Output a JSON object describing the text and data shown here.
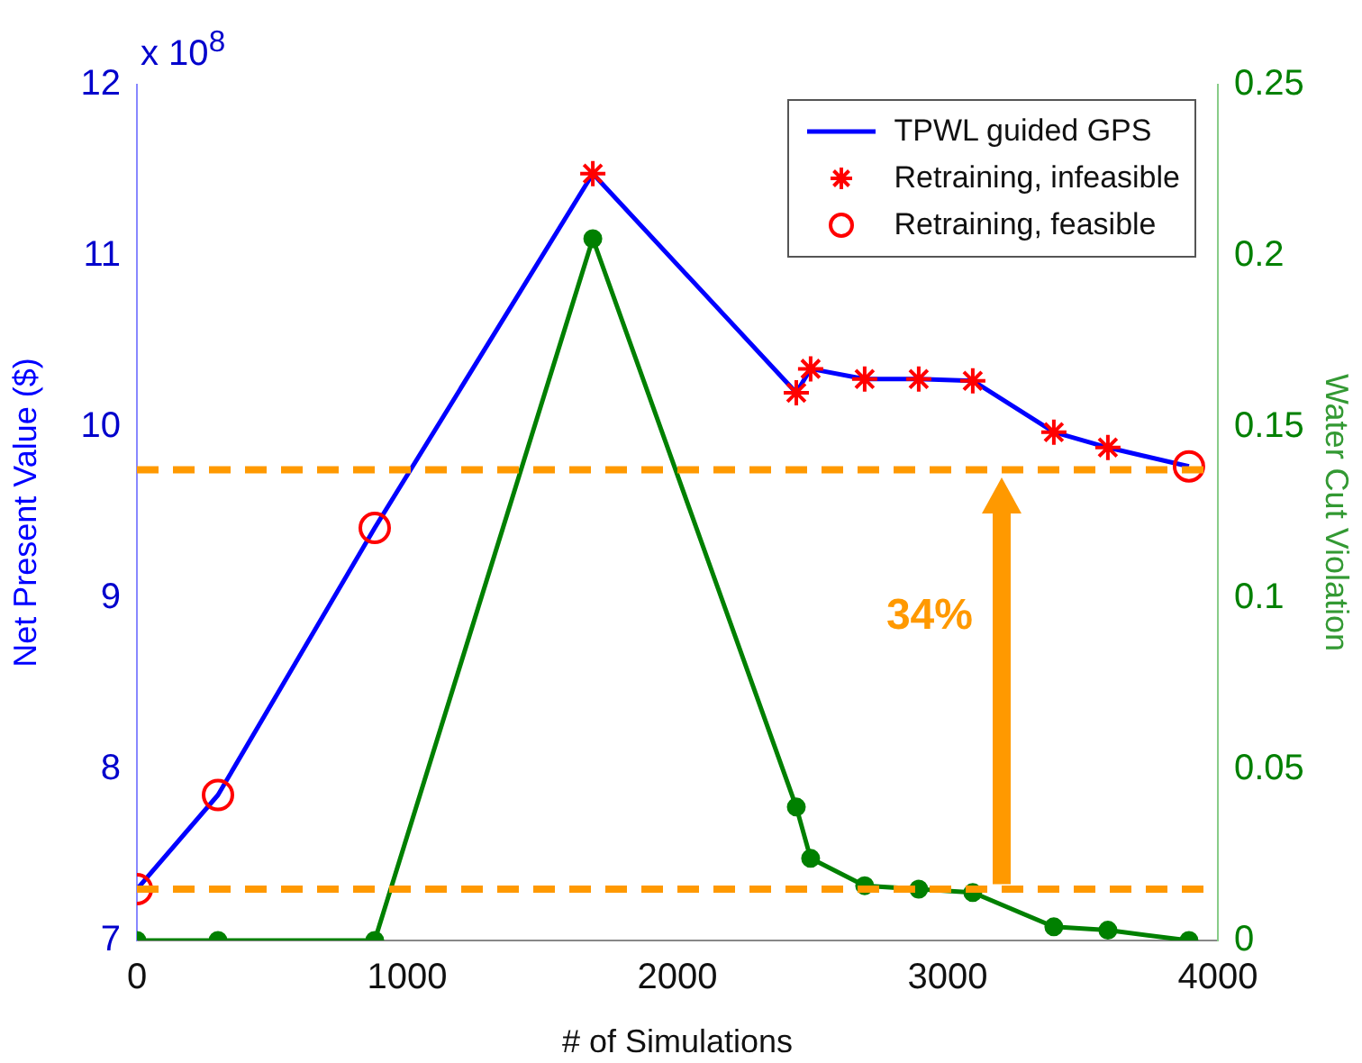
{
  "chart_data": {
    "type": "line",
    "xlabel": "# of Simulations",
    "ylabel": "Net Present Value ($)",
    "y2label": "Water Cut Violation",
    "xlim": [
      0,
      4000
    ],
    "xticks": [
      0,
      1000,
      2000,
      3000,
      4000
    ],
    "ylim": [
      7,
      12
    ],
    "yticks": [
      7,
      8,
      9,
      10,
      11,
      12
    ],
    "y2lim": [
      0,
      0.25
    ],
    "y2ticks": [
      0,
      0.05,
      0.1,
      0.15,
      0.2,
      0.25
    ],
    "legend": "top right",
    "grid": false,
    "series": [
      {
        "name": "TPWL guided GPS",
        "color": "#0000ff",
        "marker": "none",
        "x": [
          0,
          300,
          880,
          1687,
          2440,
          2493,
          2693,
          2893,
          3093,
          3393,
          3593,
          3893
        ],
        "values": [
          7.3,
          7.85,
          9.41,
          11.48,
          10.2,
          10.34,
          10.28,
          10.28,
          10.27,
          9.97,
          9.88,
          9.77
        ]
      },
      {
        "name": "Retraining, infeasible",
        "type": "scatter",
        "color": "#ff0000",
        "marker": "cross",
        "x": [
          1687,
          2440,
          2493,
          2693,
          2893,
          3093,
          3393,
          3593
        ],
        "values": [
          11.48,
          10.2,
          10.34,
          10.28,
          10.28,
          10.27,
          9.97,
          9.88
        ]
      },
      {
        "name": "Retraining, feasible",
        "type": "scatter",
        "color": "#ff0000",
        "marker": "circle",
        "x": [
          0,
          300,
          880,
          3893
        ],
        "values": [
          7.3,
          7.85,
          9.41,
          9.77
        ]
      },
      {
        "axis": "y2",
        "color": "#008000",
        "marker": "circle",
        "x": [
          0,
          300,
          880,
          1687,
          2440,
          2493,
          2693,
          2893,
          3093,
          3393,
          3593,
          3893
        ],
        "values": [
          0,
          0,
          0,
          0.205,
          0.039,
          0.024,
          0.016,
          0.015,
          0.014,
          0.004,
          0.003,
          0
        ]
      }
    ],
    "ref_lines": [
      {
        "axis": "y",
        "value": 9.75,
        "color": "#ff9900",
        "line_style": "dashed"
      },
      {
        "axis": "y",
        "value": 7.3,
        "color": "#ff9900",
        "line_style": "dashed"
      }
    ],
    "annotations": [
      "x 10$^{8}$",
      "34%"
    ]
  }
}
